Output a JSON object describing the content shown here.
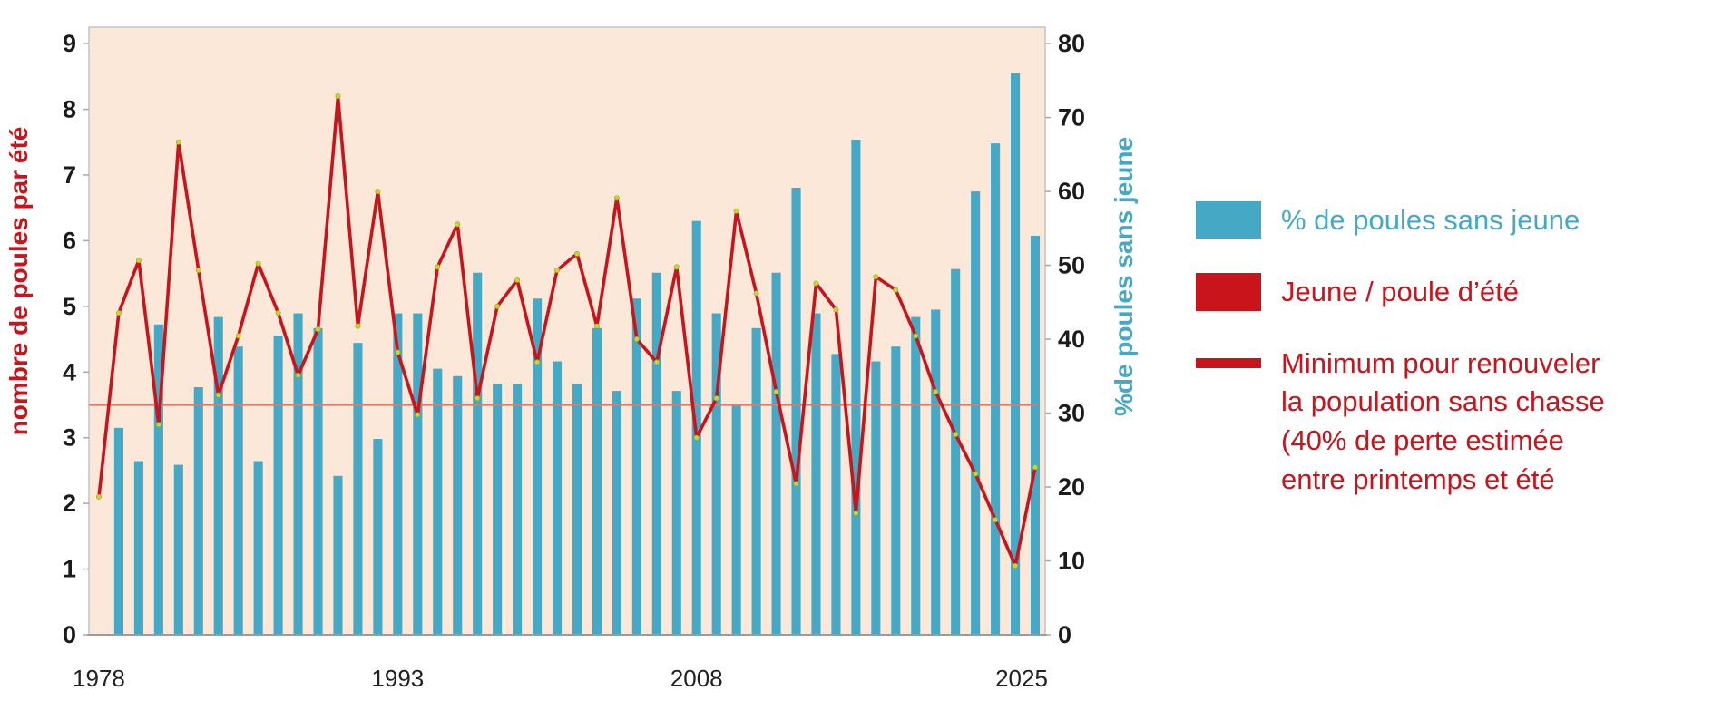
{
  "colors": {
    "bar_teal": "#45a9c6",
    "series_red": "#c9141b",
    "min_line_salmon": "#e07a6e",
    "marker_yellow": "#c9d531",
    "plot_background": "#fce8d9",
    "frame_grey": "#c4c4c4",
    "tick_text": "#1b1b1b"
  },
  "legend": {
    "items": [
      {
        "swatch": "bar",
        "color": "#45a9c6",
        "label": "% de poules sans jeune"
      },
      {
        "swatch": "bar",
        "color": "#c9141b",
        "label": "Jeune / poule d’été"
      },
      {
        "swatch": "line",
        "color": "#c9141b",
        "label": "Minimum pour renouveler\n la population sans chasse\n(40% de perte estimée\nentre printemps et été"
      }
    ]
  },
  "chart_data": {
    "type": "bar",
    "subtype": "bar+line combo, dual axis",
    "title": "",
    "categories": [
      1978,
      1979,
      1980,
      1981,
      1982,
      1983,
      1984,
      1985,
      1986,
      1987,
      1988,
      1989,
      1990,
      1991,
      1992,
      1993,
      1994,
      1995,
      1996,
      1997,
      1998,
      1999,
      2000,
      2001,
      2002,
      2003,
      2004,
      2005,
      2006,
      2007,
      2008,
      2009,
      2010,
      2011,
      2012,
      2013,
      2014,
      2015,
      2016,
      2017,
      2018,
      2019,
      2020,
      2021,
      2022,
      2023,
      2024,
      2025
    ],
    "series": [
      {
        "name": "% de poules sans jeune",
        "type": "bar",
        "axis": "right",
        "color": "#45a9c6",
        "values": [
          null,
          28,
          23.5,
          42,
          23,
          33.5,
          43,
          39,
          23.5,
          40.5,
          43.5,
          41.5,
          21.5,
          39.5,
          26.5,
          43.5,
          43.5,
          36,
          35,
          49,
          34,
          34,
          45.5,
          37,
          34,
          41.5,
          33,
          45.5,
          49,
          33,
          56,
          43.5,
          31,
          41.5,
          49,
          60.5,
          43.5,
          38,
          67,
          37,
          39,
          43,
          44,
          49.5,
          60,
          66.5,
          76,
          54
        ]
      },
      {
        "name": "Jeune / poule d'été",
        "type": "line",
        "axis": "left",
        "color": "#c9141b",
        "marker_color": "#c9d531",
        "values": [
          2.1,
          4.9,
          5.7,
          3.2,
          7.5,
          5.55,
          3.65,
          4.55,
          5.65,
          4.9,
          3.95,
          4.65,
          8.2,
          4.7,
          6.75,
          4.3,
          3.35,
          5.6,
          6.25,
          3.6,
          5.0,
          5.4,
          4.15,
          5.55,
          5.8,
          4.7,
          6.65,
          4.5,
          4.15,
          5.6,
          3.0,
          3.6,
          6.45,
          5.2,
          3.7,
          2.3,
          5.35,
          4.95,
          1.85,
          5.45,
          5.25,
          4.55,
          3.7,
          3.05,
          2.45,
          1.75,
          1.05,
          2.55
        ]
      },
      {
        "name": "Minimum pour renouveler la population sans chasse",
        "type": "hline",
        "axis": "left",
        "color": "#e07a6e",
        "value": 3.5
      }
    ],
    "left_axis": {
      "label": "nombre de poules par été",
      "min": 0,
      "max": 9,
      "step": 1,
      "color": "#c9141b"
    },
    "right_axis": {
      "label": "%de poules sans jeune",
      "min": 0,
      "max": 80,
      "step": 10,
      "color": "#45a9c6"
    },
    "x_axis": {
      "tick_labels": [
        "1978",
        "1993",
        "2008",
        "2025"
      ],
      "tick_indices": [
        0,
        15,
        30,
        47
      ]
    },
    "grid": false,
    "legend_position": "right",
    "plot_background": "#fce8d9"
  }
}
